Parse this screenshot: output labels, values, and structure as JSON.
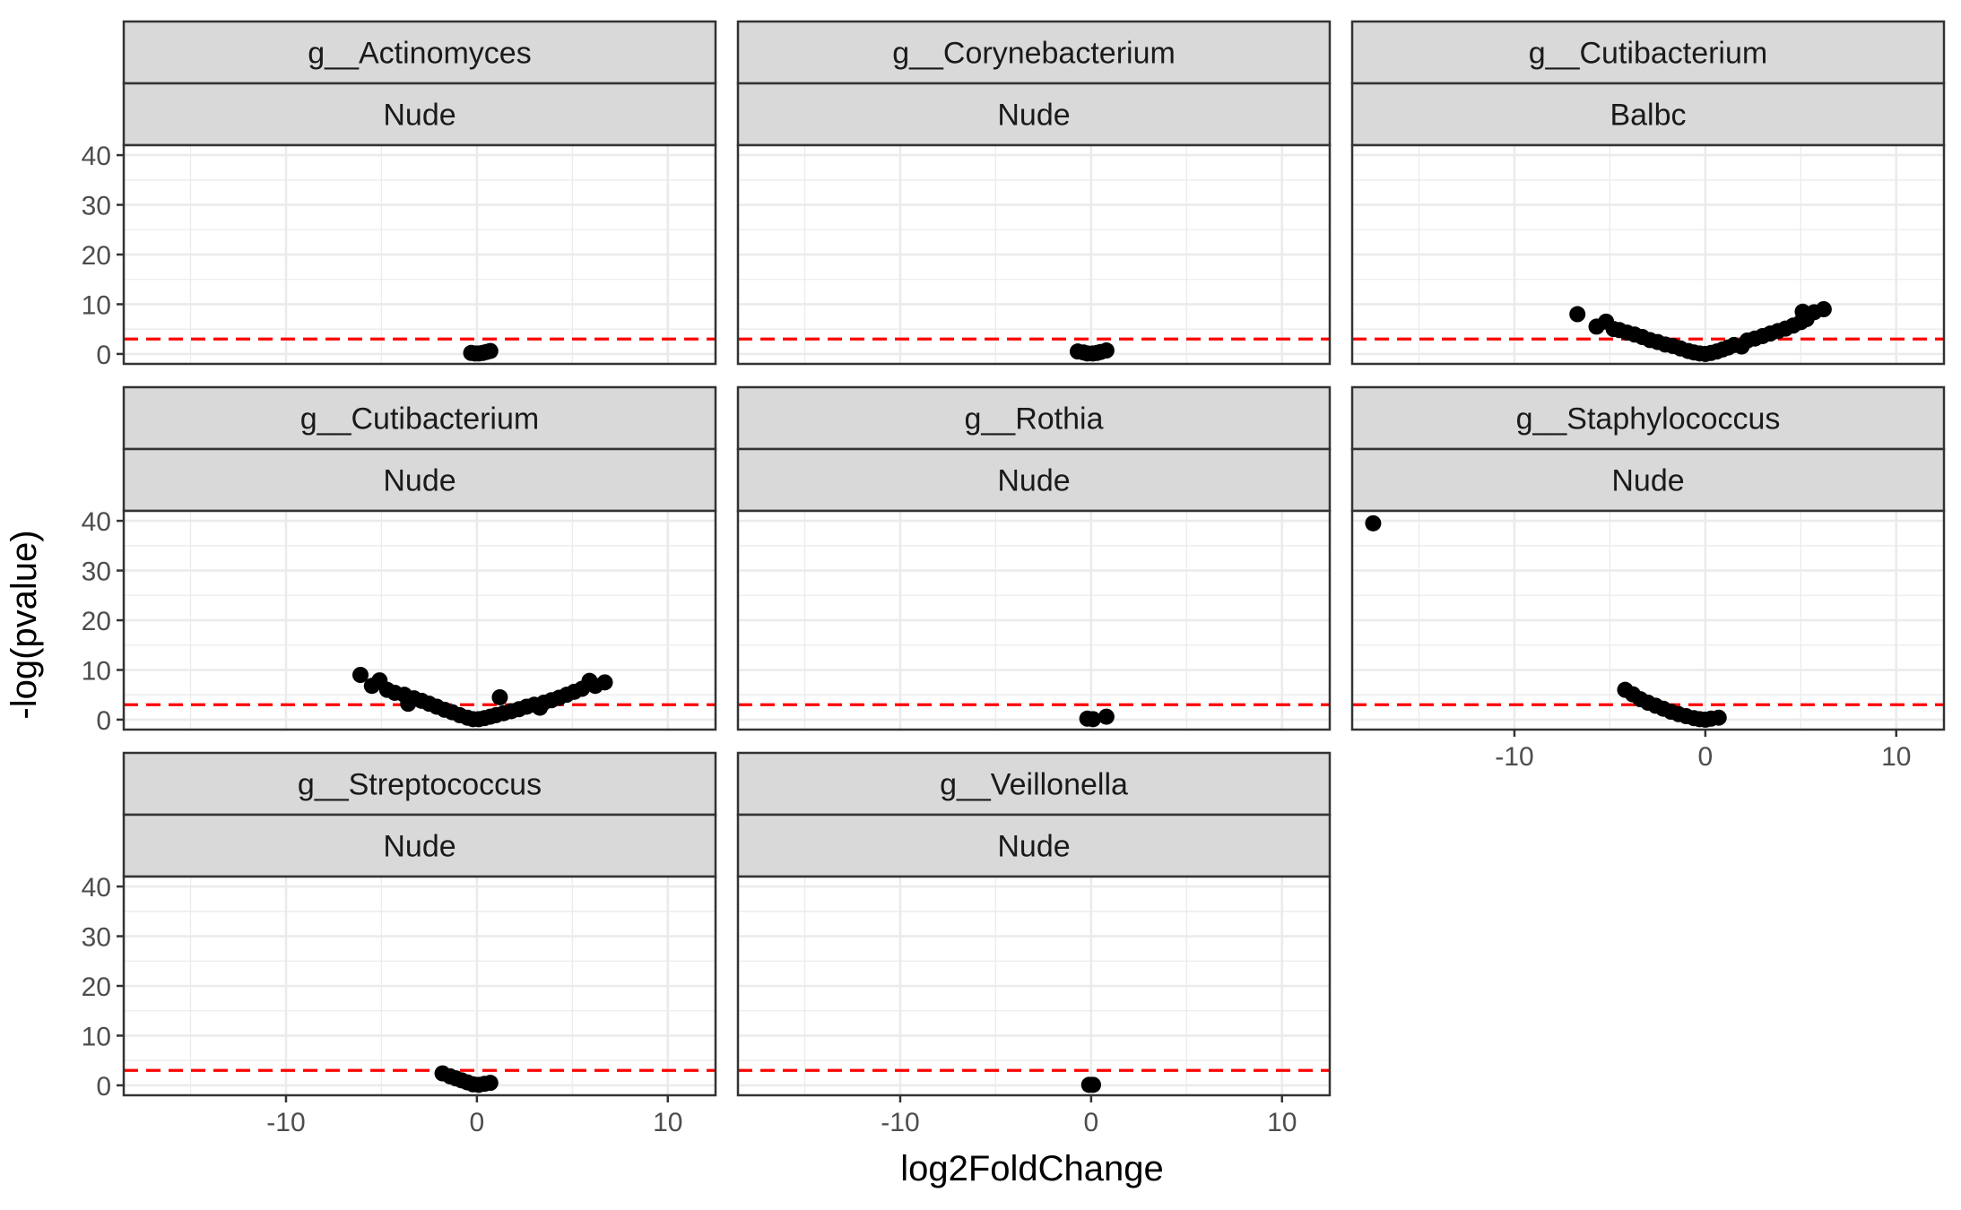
{
  "chart_data": {
    "type": "scatter",
    "xlabel": "log2FoldChange",
    "ylabel": "-log(pvalue)",
    "xlim": [
      -18.5,
      12.5
    ],
    "ylim": [
      -2,
      42
    ],
    "x_ticks": [
      -10,
      0,
      10
    ],
    "y_ticks": [
      0,
      10,
      20,
      30,
      40
    ],
    "threshold": 3,
    "threshold_color": "#ff0000",
    "point_color": "#000000",
    "grid": true,
    "panels": [
      {
        "genus": "g__Actinomyces",
        "group": "Nude",
        "points": [
          [
            -0.3,
            0.2
          ],
          [
            -0.1,
            0.1
          ],
          [
            0.1,
            0.1
          ],
          [
            0.3,
            0.2
          ],
          [
            0.5,
            0.4
          ],
          [
            0.7,
            0.6
          ]
        ]
      },
      {
        "genus": "g__Corynebacterium",
        "group": "Nude",
        "points": [
          [
            -0.7,
            0.5
          ],
          [
            -0.4,
            0.3
          ],
          [
            -0.2,
            0.1
          ],
          [
            0.1,
            0.1
          ],
          [
            0.3,
            0.2
          ],
          [
            0.5,
            0.4
          ],
          [
            0.8,
            0.7
          ]
        ]
      },
      {
        "genus": "g__Cutibacterium",
        "group": "Balbc",
        "points": [
          [
            -6.7,
            8.0
          ],
          [
            -5.7,
            5.5
          ],
          [
            -5.2,
            6.5
          ],
          [
            -4.8,
            5.0
          ],
          [
            -4.5,
            4.8
          ],
          [
            -4.1,
            4.3
          ],
          [
            -3.7,
            3.9
          ],
          [
            -3.3,
            3.4
          ],
          [
            -2.9,
            2.8
          ],
          [
            -2.5,
            2.4
          ],
          [
            -2.1,
            1.9
          ],
          [
            -1.7,
            1.6
          ],
          [
            -1.3,
            1.1
          ],
          [
            -0.9,
            0.6
          ],
          [
            -0.6,
            0.3
          ],
          [
            -0.3,
            0.1
          ],
          [
            0.0,
            0.0
          ],
          [
            0.3,
            0.2
          ],
          [
            0.6,
            0.5
          ],
          [
            0.9,
            0.9
          ],
          [
            1.2,
            1.3
          ],
          [
            1.5,
            1.8
          ],
          [
            1.9,
            1.5
          ],
          [
            2.2,
            2.7
          ],
          [
            2.6,
            3.1
          ],
          [
            3.0,
            3.6
          ],
          [
            3.4,
            4.1
          ],
          [
            3.8,
            4.6
          ],
          [
            4.2,
            5.1
          ],
          [
            4.6,
            5.7
          ],
          [
            5.0,
            6.4
          ],
          [
            5.3,
            7.0
          ],
          [
            5.1,
            8.5
          ],
          [
            5.7,
            8.4
          ],
          [
            6.2,
            9.0
          ]
        ]
      },
      {
        "genus": "g__Cutibacterium",
        "group": "Nude",
        "points": [
          [
            -6.1,
            9.0
          ],
          [
            -5.5,
            6.8
          ],
          [
            -5.1,
            7.9
          ],
          [
            -4.7,
            6.0
          ],
          [
            -4.3,
            5.4
          ],
          [
            -3.8,
            5.0
          ],
          [
            -3.6,
            3.2
          ],
          [
            -3.3,
            4.3
          ],
          [
            -2.9,
            3.8
          ],
          [
            -2.5,
            3.2
          ],
          [
            -2.1,
            2.6
          ],
          [
            -1.7,
            2.0
          ],
          [
            -1.3,
            1.5
          ],
          [
            -0.9,
            0.9
          ],
          [
            -0.5,
            0.4
          ],
          [
            -0.2,
            0.1
          ],
          [
            0.1,
            0.1
          ],
          [
            0.4,
            0.3
          ],
          [
            0.7,
            0.6
          ],
          [
            1.0,
            0.9
          ],
          [
            1.2,
            4.5
          ],
          [
            1.4,
            1.3
          ],
          [
            1.8,
            1.7
          ],
          [
            2.2,
            2.1
          ],
          [
            2.6,
            2.6
          ],
          [
            3.0,
            3.0
          ],
          [
            3.3,
            2.4
          ],
          [
            3.5,
            3.4
          ],
          [
            3.9,
            3.9
          ],
          [
            4.3,
            4.4
          ],
          [
            4.7,
            5.0
          ],
          [
            5.1,
            5.6
          ],
          [
            5.5,
            6.2
          ],
          [
            5.9,
            7.8
          ],
          [
            6.2,
            6.8
          ],
          [
            6.7,
            7.5
          ]
        ]
      },
      {
        "genus": "g__Rothia",
        "group": "Nude",
        "points": [
          [
            -0.2,
            0.2
          ],
          [
            0.1,
            0.1
          ],
          [
            0.8,
            0.6
          ]
        ]
      },
      {
        "genus": "g__Staphylococcus",
        "group": "Nude",
        "points": [
          [
            -17.4,
            39.5
          ],
          [
            -4.2,
            6.0
          ],
          [
            -3.8,
            5.1
          ],
          [
            -3.4,
            4.1
          ],
          [
            -3.0,
            3.4
          ],
          [
            -2.6,
            2.8
          ],
          [
            -2.2,
            2.2
          ],
          [
            -1.8,
            1.6
          ],
          [
            -1.4,
            1.1
          ],
          [
            -1.0,
            0.7
          ],
          [
            -0.6,
            0.3
          ],
          [
            -0.3,
            0.1
          ],
          [
            0.0,
            0.0
          ],
          [
            0.3,
            0.2
          ],
          [
            0.7,
            0.4
          ]
        ]
      },
      {
        "genus": "g__Streptococcus",
        "group": "Nude",
        "points": [
          [
            -1.8,
            2.4
          ],
          [
            -1.4,
            1.8
          ],
          [
            -1.1,
            1.4
          ],
          [
            -0.8,
            1.0
          ],
          [
            -0.5,
            0.6
          ],
          [
            -0.2,
            0.2
          ],
          [
            0.1,
            0.1
          ],
          [
            0.4,
            0.3
          ],
          [
            0.7,
            0.5
          ]
        ]
      },
      {
        "genus": "g__Veillonella",
        "group": "Nude",
        "points": [
          [
            -0.1,
            0.1
          ],
          [
            0.1,
            0.1
          ]
        ]
      }
    ]
  }
}
